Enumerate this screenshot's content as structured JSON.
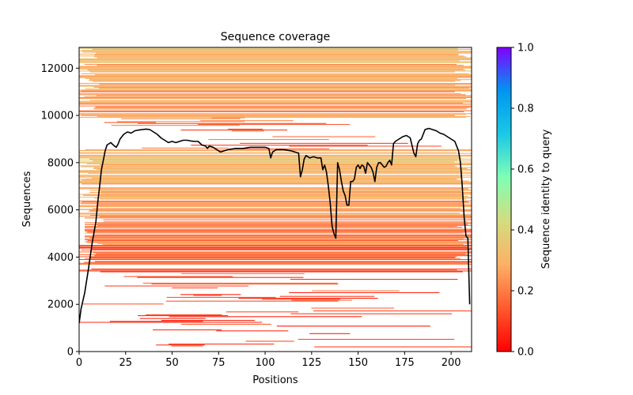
{
  "chart_data": {
    "type": "heatmap",
    "title": "Sequence coverage",
    "xlabel": "Positions",
    "ylabel": "Sequences",
    "xlim": [
      0,
      211
    ],
    "ylim": [
      0,
      12880
    ],
    "xticks": [
      0,
      25,
      50,
      75,
      100,
      125,
      150,
      175,
      200
    ],
    "xtick_labels": [
      "0",
      "25",
      "50",
      "75",
      "100",
      "125",
      "150",
      "175",
      "200"
    ],
    "yticks": [
      0,
      2000,
      4000,
      6000,
      8000,
      10000,
      12000
    ],
    "ytick_labels": [
      "0",
      "2000",
      "4000",
      "6000",
      "8000",
      "10000",
      "12000"
    ],
    "colorbar": {
      "label": "Sequence identity to query",
      "range": [
        0,
        1
      ],
      "ticks": [
        0.0,
        0.2,
        0.4,
        0.6,
        0.8,
        1.0
      ],
      "tick_labels": [
        "0.0",
        "0.2",
        "0.4",
        "0.6",
        "0.8",
        "1.0"
      ],
      "colormap": "rainbow_r",
      "stops": [
        "#ff0000",
        "#ff5a2e",
        "#fdb066",
        "#d4dc7f",
        "#80ffb4",
        "#1ac9e6",
        "#0096f0",
        "#8000ff"
      ]
    },
    "coverage_line": {
      "color": "#000000",
      "x": [
        0,
        1,
        3,
        5,
        7,
        9,
        10,
        11,
        12,
        13,
        14,
        15,
        17,
        19,
        20,
        21,
        22,
        24,
        26,
        28,
        30,
        32,
        34,
        36,
        38,
        40,
        42,
        44,
        46,
        48,
        50,
        52,
        54,
        56,
        58,
        60,
        62,
        64,
        66,
        68,
        69,
        70,
        72,
        74,
        76,
        78,
        80,
        84,
        88,
        92,
        96,
        100,
        102,
        103,
        104,
        106,
        110,
        114,
        116,
        118,
        119,
        120,
        121,
        122,
        123,
        124,
        126,
        128,
        130,
        131,
        132,
        133,
        134,
        135,
        136,
        137,
        138,
        139,
        140,
        141,
        142,
        143,
        144,
        145,
        146,
        147,
        148,
        149,
        150,
        151,
        152,
        153,
        154,
        155,
        156,
        157,
        158,
        159,
        160,
        161,
        162,
        163,
        164,
        165,
        166,
        167,
        168,
        169,
        170,
        172,
        174,
        176,
        178,
        180,
        181,
        182,
        183,
        184,
        186,
        188,
        190,
        192,
        194,
        196,
        198,
        200,
        202,
        204,
        205,
        206,
        207,
        208,
        209,
        210
      ],
      "y": [
        1200,
        1800,
        2500,
        3500,
        4600,
        5500,
        6300,
        7000,
        7700,
        8100,
        8500,
        8750,
        8850,
        8700,
        8650,
        8800,
        9000,
        9200,
        9300,
        9250,
        9350,
        9380,
        9400,
        9420,
        9400,
        9300,
        9200,
        9050,
        8950,
        8850,
        8900,
        8850,
        8900,
        8950,
        8950,
        8920,
        8900,
        8900,
        8750,
        8700,
        8600,
        8700,
        8650,
        8550,
        8450,
        8500,
        8550,
        8600,
        8600,
        8650,
        8650,
        8650,
        8600,
        8200,
        8450,
        8550,
        8550,
        8500,
        8450,
        8400,
        7400,
        7700,
        8150,
        8300,
        8250,
        8200,
        8250,
        8200,
        8200,
        7700,
        7900,
        7600,
        7000,
        6300,
        5300,
        5000,
        4800,
        8000,
        7700,
        7200,
        6800,
        6600,
        6200,
        6200,
        7200,
        7200,
        7300,
        7800,
        7900,
        7750,
        7900,
        7850,
        7550,
        8000,
        7900,
        7800,
        7600,
        7200,
        7800,
        8000,
        8000,
        7900,
        7800,
        7850,
        8000,
        8100,
        7900,
        8800,
        8900,
        9000,
        9100,
        9150,
        9050,
        8400,
        8250,
        8800,
        8950,
        9000,
        9400,
        9450,
        9400,
        9350,
        9250,
        9200,
        9100,
        9000,
        8900,
        8500,
        8000,
        7000,
        5700,
        4900,
        4800,
        2000
      ]
    },
    "coverage_bands": [
      {
        "y0": 12200,
        "y1": 12880,
        "x0": 0,
        "x1": 211,
        "identity": 0.32,
        "gaps": 0.1
      },
      {
        "y0": 11000,
        "y1": 12200,
        "x0": 0,
        "x1": 211,
        "identity": 0.28,
        "gaps": 0.12
      },
      {
        "y0": 9900,
        "y1": 11000,
        "x0": 0,
        "x1": 211,
        "identity": 0.24,
        "gaps": 0.14
      },
      {
        "y0": 9500,
        "y1": 9900,
        "x0": 5,
        "x1": 211,
        "identity": 0.18,
        "gaps": 0.35
      },
      {
        "y0": 8550,
        "y1": 9500,
        "x0": 10,
        "x1": 211,
        "identity": 0.15,
        "gaps": 0.55
      },
      {
        "y0": 7300,
        "y1": 8550,
        "x0": 0,
        "x1": 211,
        "identity": 0.32,
        "gaps": 0.05
      },
      {
        "y0": 5700,
        "y1": 7300,
        "x0": 0,
        "x1": 211,
        "identity": 0.27,
        "gaps": 0.08
      },
      {
        "y0": 4500,
        "y1": 5700,
        "x0": 3,
        "x1": 211,
        "identity": 0.2,
        "gaps": 0.12
      },
      {
        "y0": 3300,
        "y1": 4500,
        "x0": 0,
        "x1": 211,
        "identity": 0.15,
        "gaps": 0.22
      },
      {
        "y0": 2000,
        "y1": 3300,
        "x0": 0,
        "x1": 211,
        "identity": 0.13,
        "gaps": 0.45
      },
      {
        "y0": 800,
        "y1": 2000,
        "x0": 0,
        "x1": 211,
        "identity": 0.1,
        "gaps": 0.6
      },
      {
        "y0": 0,
        "y1": 800,
        "x0": 10,
        "x1": 211,
        "identity": 0.07,
        "gaps": 0.75
      }
    ]
  }
}
